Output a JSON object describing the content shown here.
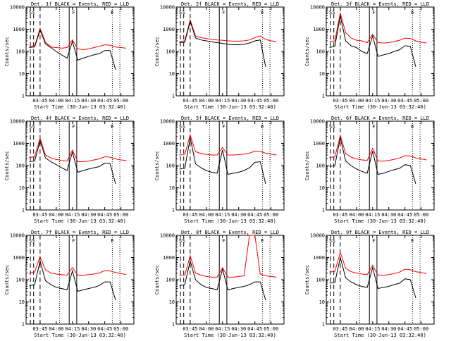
{
  "figure": {
    "time_ticks": [
      "03:45",
      "04:00",
      "04:15",
      "04:30",
      "04:45",
      "05:00"
    ],
    "y_ticks": [
      "1",
      "10",
      "100",
      "1000",
      "10000"
    ],
    "colors": {
      "events": "#000000",
      "lld": "#ff0000",
      "background": "#ffffff"
    }
  },
  "chart_data": [
    {
      "type": "line",
      "detector": "1f",
      "title": "Det. 1f BLACK = Events, RED = LLD",
      "xlabel": "Start Time (30-Jun-13 03:32:40)",
      "ylabel": "Counts/sec",
      "x": [
        "03:35",
        "03:40",
        "03:45",
        "03:50",
        "03:55",
        "04:00",
        "04:05",
        "04:10",
        "04:15",
        "04:20",
        "04:25",
        "04:30",
        "04:35",
        "04:40",
        "04:45",
        "04:50",
        "04:55",
        "05:00",
        "05:05"
      ],
      "yscale": "log",
      "ylim": [
        1,
        10000
      ],
      "markers": [
        {
          "label": "S",
          "time": "03:36"
        },
        {
          "label": "S",
          "time": "03:39"
        },
        {
          "label": "F",
          "time": "04:16"
        },
        {
          "label": "E",
          "time": "04:52"
        }
      ],
      "series": [
        {
          "name": "LLD",
          "color": "#ff0000",
          "values": [
            170,
            180,
            1100,
            260,
            160,
            150,
            140,
            150,
            330,
            130,
            120,
            130,
            150,
            170,
            200,
            190,
            160,
            150,
            140
          ]
        },
        {
          "name": "Events",
          "color": "#000000",
          "values": [
            150,
            160,
            900,
            220,
            150,
            100,
            70,
            50,
            280,
            40,
            50,
            60,
            70,
            80,
            110,
            110,
            15,
            null,
            null
          ]
        }
      ]
    },
    {
      "type": "line",
      "detector": "2f",
      "title": "Det. 2f BLACK = Events, RED = LLD",
      "xlabel": "Start Time (30-Jun-13 03:32:40)",
      "ylabel": "Counts/sec",
      "x": [
        "03:35",
        "03:40",
        "03:45",
        "03:50",
        "03:55",
        "04:00",
        "04:05",
        "04:10",
        "04:15",
        "04:20",
        "04:25",
        "04:30",
        "04:35",
        "04:40",
        "04:45",
        "04:50",
        "04:55",
        "05:00",
        "05:05"
      ],
      "yscale": "log",
      "ylim": [
        1,
        10000
      ],
      "markers": [
        {
          "label": "S",
          "time": "03:36"
        },
        {
          "label": "S",
          "time": "03:39"
        },
        {
          "label": "F",
          "time": "04:16"
        },
        {
          "label": "E",
          "time": "04:52"
        }
      ],
      "series": [
        {
          "name": "LLD",
          "color": "#ff0000",
          "values": [
            280,
            300,
            2600,
            500,
            420,
            380,
            350,
            330,
            320,
            300,
            290,
            290,
            300,
            330,
            420,
            500,
            350,
            300,
            280
          ]
        },
        {
          "name": "Events",
          "color": "#000000",
          "values": [
            250,
            260,
            2300,
            400,
            330,
            300,
            270,
            250,
            230,
            210,
            200,
            200,
            210,
            240,
            300,
            330,
            20,
            null,
            null
          ]
        }
      ]
    },
    {
      "type": "line",
      "detector": "3f",
      "title": "Det. 3f BLACK = Events, RED = LLD",
      "xlabel": "Start Time (30-Jun-13 03:32:40)",
      "ylabel": "Counts/sec",
      "x": [
        "03:35",
        "03:40",
        "03:45",
        "03:50",
        "03:55",
        "04:00",
        "04:05",
        "04:10",
        "04:15",
        "04:20",
        "04:25",
        "04:30",
        "04:35",
        "04:40",
        "04:45",
        "04:50",
        "04:55",
        "05:00",
        "05:05"
      ],
      "yscale": "log",
      "ylim": [
        1,
        10000
      ],
      "markers": [
        {
          "label": "S",
          "time": "03:36"
        },
        {
          "label": "S",
          "time": "03:39"
        },
        {
          "label": "F",
          "time": "04:16"
        },
        {
          "label": "E",
          "time": "04:52"
        }
      ],
      "series": [
        {
          "name": "LLD",
          "color": "#ff0000",
          "values": [
            280,
            300,
            5500,
            700,
            400,
            320,
            300,
            250,
            600,
            250,
            240,
            250,
            280,
            320,
            400,
            380,
            300,
            260,
            240
          ]
        },
        {
          "name": "Events",
          "color": "#000000",
          "values": [
            150,
            170,
            4000,
            300,
            180,
            150,
            100,
            80,
            500,
            60,
            70,
            80,
            100,
            120,
            180,
            170,
            20,
            null,
            null
          ]
        }
      ]
    },
    {
      "type": "line",
      "detector": "4f",
      "title": "Det. 4f BLACK = Events, RED = LLD",
      "xlabel": "Start Time (30-Jun-13 03:32:40)",
      "ylabel": "Counts/sec",
      "x": [
        "03:35",
        "03:40",
        "03:45",
        "03:50",
        "03:55",
        "04:00",
        "04:05",
        "04:10",
        "04:15",
        "04:20",
        "04:25",
        "04:30",
        "04:35",
        "04:40",
        "04:45",
        "04:50",
        "04:55",
        "05:00",
        "05:05"
      ],
      "yscale": "log",
      "ylim": [
        1,
        10000
      ],
      "markers": [
        {
          "label": "S",
          "time": "03:36"
        },
        {
          "label": "S",
          "time": "03:39"
        },
        {
          "label": "F",
          "time": "04:16"
        },
        {
          "label": "E",
          "time": "04:52"
        }
      ],
      "series": [
        {
          "name": "LLD",
          "color": "#ff0000",
          "values": [
            230,
            250,
            1700,
            300,
            220,
            190,
            170,
            160,
            500,
            150,
            150,
            160,
            180,
            200,
            250,
            240,
            200,
            180,
            170
          ]
        },
        {
          "name": "Events",
          "color": "#000000",
          "values": [
            150,
            160,
            1300,
            220,
            150,
            110,
            80,
            60,
            400,
            50,
            60,
            70,
            80,
            90,
            130,
            120,
            15,
            null,
            null
          ]
        }
      ]
    },
    {
      "type": "line",
      "detector": "5f",
      "title": "Det. 5f BLACK = Events, RED = LLD",
      "xlabel": "Start Time (30-Jun-13 03:32:40)",
      "ylabel": "Counts/sec",
      "x": [
        "03:35",
        "03:40",
        "03:45",
        "03:50",
        "03:55",
        "04:00",
        "04:05",
        "04:10",
        "04:15",
        "04:20",
        "04:25",
        "04:30",
        "04:35",
        "04:40",
        "04:45",
        "04:50",
        "04:55",
        "05:00",
        "05:05"
      ],
      "yscale": "log",
      "ylim": [
        1,
        10000
      ],
      "markers": [
        {
          "label": "S",
          "time": "03:36"
        },
        {
          "label": "S",
          "time": "03:39"
        },
        {
          "label": "F",
          "time": "04:16"
        },
        {
          "label": "E",
          "time": "04:52"
        }
      ],
      "series": [
        {
          "name": "LLD",
          "color": "#ff0000",
          "values": [
            300,
            320,
            2400,
            420,
            350,
            320,
            300,
            300,
            650,
            300,
            300,
            310,
            330,
            360,
            450,
            430,
            360,
            330,
            300
          ]
        },
        {
          "name": "Events",
          "color": "#000000",
          "values": [
            70,
            75,
            1800,
            120,
            80,
            60,
            50,
            45,
            500,
            40,
            45,
            50,
            60,
            80,
            140,
            150,
            15,
            null,
            null
          ]
        }
      ]
    },
    {
      "type": "line",
      "detector": "6f",
      "title": "Det. 6f BLACK = Events, RED = LLD",
      "xlabel": "Start Time (30-Jun-13 03:32:40)",
      "ylabel": "Counts/sec",
      "x": [
        "03:35",
        "03:40",
        "03:45",
        "03:50",
        "03:55",
        "04:00",
        "04:05",
        "04:10",
        "04:15",
        "04:20",
        "04:25",
        "04:30",
        "04:35",
        "04:40",
        "04:45",
        "04:50",
        "04:55",
        "05:00",
        "05:05"
      ],
      "yscale": "log",
      "ylim": [
        1,
        10000
      ],
      "markers": [
        {
          "label": "S",
          "time": "03:36"
        },
        {
          "label": "S",
          "time": "03:39"
        },
        {
          "label": "F",
          "time": "04:16"
        },
        {
          "label": "E",
          "time": "04:52"
        }
      ],
      "series": [
        {
          "name": "LLD",
          "color": "#ff0000",
          "values": [
            230,
            250,
            2300,
            350,
            240,
            200,
            180,
            170,
            600,
            160,
            160,
            170,
            190,
            220,
            280,
            270,
            220,
            200,
            180
          ]
        },
        {
          "name": "Events",
          "color": "#000000",
          "values": [
            90,
            100,
            1800,
            160,
            100,
            70,
            55,
            45,
            450,
            40,
            45,
            55,
            65,
            75,
            110,
            100,
            15,
            null,
            null
          ]
        }
      ]
    },
    {
      "type": "line",
      "detector": "7f",
      "title": "Det. 7f BLACK = Events, RED = LLD",
      "xlabel": "Start Time (30-Jun-13 03:32:40)",
      "ylabel": "Counts/sec",
      "x": [
        "03:35",
        "03:40",
        "03:45",
        "03:50",
        "03:55",
        "04:00",
        "04:05",
        "04:10",
        "04:15",
        "04:20",
        "04:25",
        "04:30",
        "04:35",
        "04:40",
        "04:45",
        "04:50",
        "04:55",
        "05:00",
        "05:05"
      ],
      "yscale": "log",
      "ylim": [
        1,
        10000
      ],
      "markers": [
        {
          "label": "S",
          "time": "03:36"
        },
        {
          "label": "S",
          "time": "03:39"
        },
        {
          "label": "F",
          "time": "04:16"
        },
        {
          "label": "E",
          "time": "04:52"
        }
      ],
      "series": [
        {
          "name": "LLD",
          "color": "#ff0000",
          "values": [
            200,
            220,
            1100,
            280,
            200,
            180,
            170,
            160,
            350,
            160,
            160,
            170,
            180,
            200,
            260,
            250,
            210,
            190,
            170
          ]
        },
        {
          "name": "Events",
          "color": "#000000",
          "values": [
            55,
            60,
            700,
            90,
            60,
            45,
            40,
            35,
            250,
            30,
            35,
            40,
            45,
            55,
            80,
            80,
            12,
            null,
            null
          ]
        }
      ]
    },
    {
      "type": "line",
      "detector": "8f",
      "title": "Det. 8f BLACK = Events, RED = LLD",
      "xlabel": "Start Time (30-Jun-13 03:32:40)",
      "ylabel": "Counts/sec",
      "x": [
        "03:35",
        "03:40",
        "03:45",
        "03:50",
        "03:55",
        "04:00",
        "04:05",
        "04:10",
        "04:15",
        "04:20",
        "04:25",
        "04:30",
        "04:35",
        "04:40",
        "04:45",
        "04:50",
        "04:55",
        "05:00",
        "05:05"
      ],
      "yscale": "log",
      "ylim": [
        1,
        10000
      ],
      "markers": [
        {
          "label": "S",
          "time": "03:36"
        },
        {
          "label": "S",
          "time": "03:39"
        },
        {
          "label": "F",
          "time": "04:16"
        },
        {
          "label": "E",
          "time": "04:52"
        }
      ],
      "series": [
        {
          "name": "LLD",
          "color": "#ff0000",
          "values": [
            150,
            160,
            1200,
            200,
            160,
            140,
            130,
            130,
            350,
            130,
            130,
            140,
            150,
            10000,
            10000,
            180,
            150,
            140,
            130
          ]
        },
        {
          "name": "Events",
          "color": "#000000",
          "values": [
            55,
            60,
            700,
            100,
            60,
            45,
            40,
            35,
            300,
            35,
            40,
            45,
            50,
            60,
            80,
            80,
            12,
            null,
            null
          ]
        }
      ]
    },
    {
      "type": "line",
      "detector": "9f",
      "title": "Det. 9f BLACK = Events, RED = LLD",
      "xlabel": "Start Time (30-Jun-13 03:32:40)",
      "ylabel": "Counts/sec",
      "x": [
        "03:35",
        "03:40",
        "03:45",
        "03:50",
        "03:55",
        "04:00",
        "04:05",
        "04:10",
        "04:15",
        "04:20",
        "04:25",
        "04:30",
        "04:35",
        "04:40",
        "04:45",
        "04:50",
        "04:55",
        "05:00",
        "05:05"
      ],
      "yscale": "log",
      "ylim": [
        1,
        10000
      ],
      "markers": [
        {
          "label": "S",
          "time": "03:36"
        },
        {
          "label": "S",
          "time": "03:39"
        },
        {
          "label": "F",
          "time": "04:16"
        },
        {
          "label": "E",
          "time": "04:52"
        }
      ],
      "series": [
        {
          "name": "LLD",
          "color": "#ff0000",
          "values": [
            220,
            240,
            1700,
            330,
            230,
            200,
            180,
            170,
            450,
            160,
            160,
            170,
            190,
            220,
            300,
            280,
            230,
            210,
            190
          ]
        },
        {
          "name": "Events",
          "color": "#000000",
          "values": [
            70,
            75,
            1000,
            120,
            80,
            60,
            50,
            45,
            350,
            40,
            45,
            50,
            60,
            70,
            110,
            100,
            15,
            null,
            null
          ]
        }
      ]
    }
  ]
}
